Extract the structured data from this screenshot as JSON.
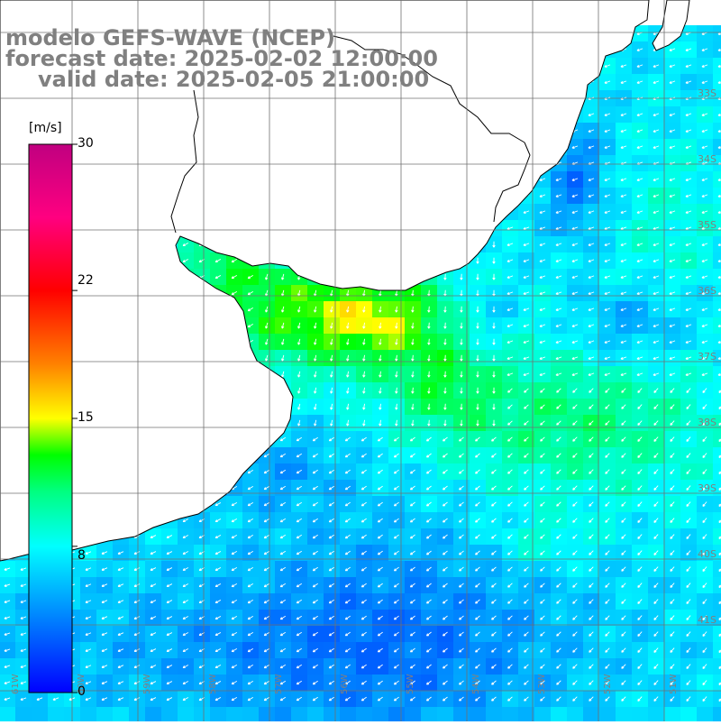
{
  "title": {
    "line1": "modelo GEFS-WAVE (NCEP)",
    "line2": "forecast date: 2025-02-02 12:00:00",
    "line3": "valid date: 2025-02-05 21:00:00"
  },
  "colorbar": {
    "unit": "[m/s]",
    "ticks": [
      "30",
      "22",
      "15",
      "8",
      "0"
    ],
    "tick_values": [
      30,
      22,
      15,
      8,
      0
    ],
    "range": [
      0,
      30
    ],
    "stops": [
      {
        "v": 0,
        "color": "#0000ff"
      },
      {
        "v": 4,
        "color": "#0080ff"
      },
      {
        "v": 8,
        "color": "#00ffff"
      },
      {
        "v": 11,
        "color": "#00ff80"
      },
      {
        "v": 13,
        "color": "#00ff00"
      },
      {
        "v": 15,
        "color": "#ffff00"
      },
      {
        "v": 18,
        "color": "#ff8000"
      },
      {
        "v": 22,
        "color": "#ff0000"
      },
      {
        "v": 26,
        "color": "#ff0080"
      },
      {
        "v": 30,
        "color": "#c00080"
      }
    ]
  },
  "lat_labels": [
    "33S",
    "34S",
    "35S",
    "36S",
    "37S",
    "38S",
    "39S",
    "40S",
    "41S"
  ],
  "lon_labels": [
    "61W",
    "60W",
    "59W",
    "58W",
    "57W",
    "56W",
    "55W",
    "54W",
    "53W",
    "52W",
    "51W"
  ],
  "colors": {
    "grid": "#707070",
    "coast": "#000000",
    "land": "#ffffff",
    "arrow": "#ffffff",
    "label": "#808080"
  }
}
